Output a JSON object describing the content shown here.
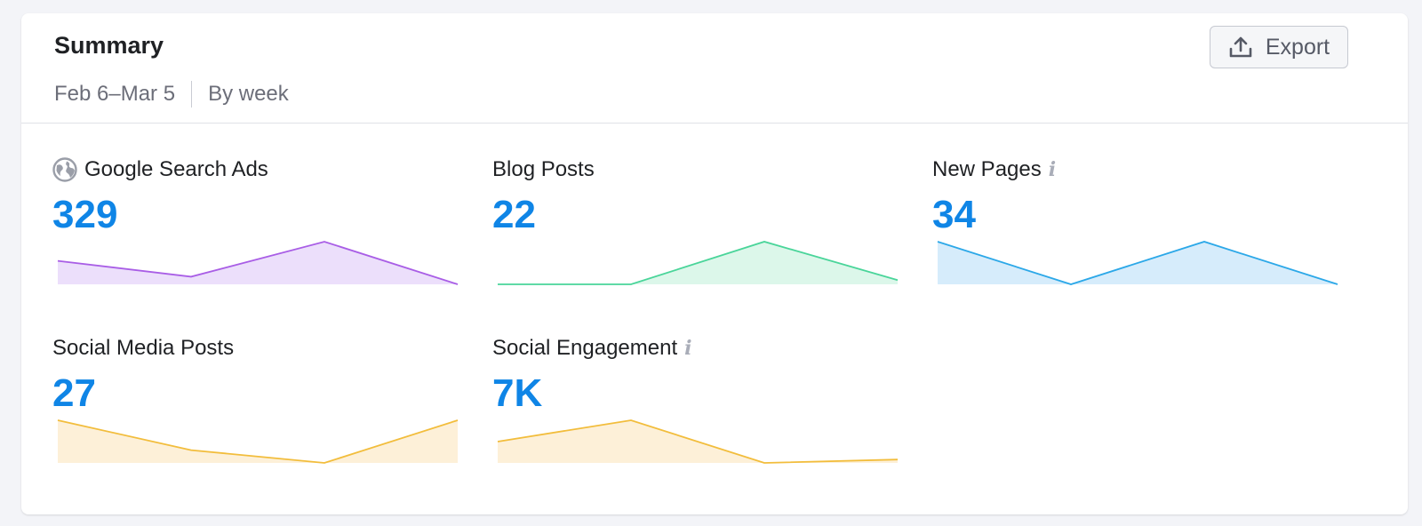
{
  "summary": {
    "title": "Summary",
    "date_range": "Feb 6–Mar 5",
    "granularity": "By week",
    "export_label": "Export"
  },
  "metrics": [
    {
      "label": "Google Search Ads",
      "value": "329",
      "icon": "globe-icon",
      "info": false,
      "line_color": "#a95ee6",
      "fill_color": "#ecdffb",
      "trend": [
        0.55,
        0.18,
        1.0,
        0.0
      ]
    },
    {
      "label": "Blog Posts",
      "value": "22",
      "icon": "",
      "info": false,
      "line_color": "#4ad59a",
      "fill_color": "#dcf7ea",
      "trend": [
        0.0,
        0.0,
        1.0,
        0.1
      ]
    },
    {
      "label": "New Pages",
      "value": "34",
      "icon": "",
      "info": true,
      "line_color": "#2ca8e8",
      "fill_color": "#d6ecfb",
      "trend": [
        1.0,
        0.0,
        1.0,
        0.0
      ]
    },
    {
      "label": "Social Media Posts",
      "value": "27",
      "icon": "",
      "info": false,
      "line_color": "#f2bd3c",
      "fill_color": "#fdf0d8",
      "trend": [
        1.0,
        0.3,
        0.0,
        1.0
      ]
    },
    {
      "label": "Social Engagement",
      "value": "7K",
      "icon": "",
      "info": true,
      "line_color": "#f2bd3c",
      "fill_color": "#fdf0d8",
      "trend": [
        0.5,
        1.0,
        0.0,
        0.08
      ]
    }
  ]
}
